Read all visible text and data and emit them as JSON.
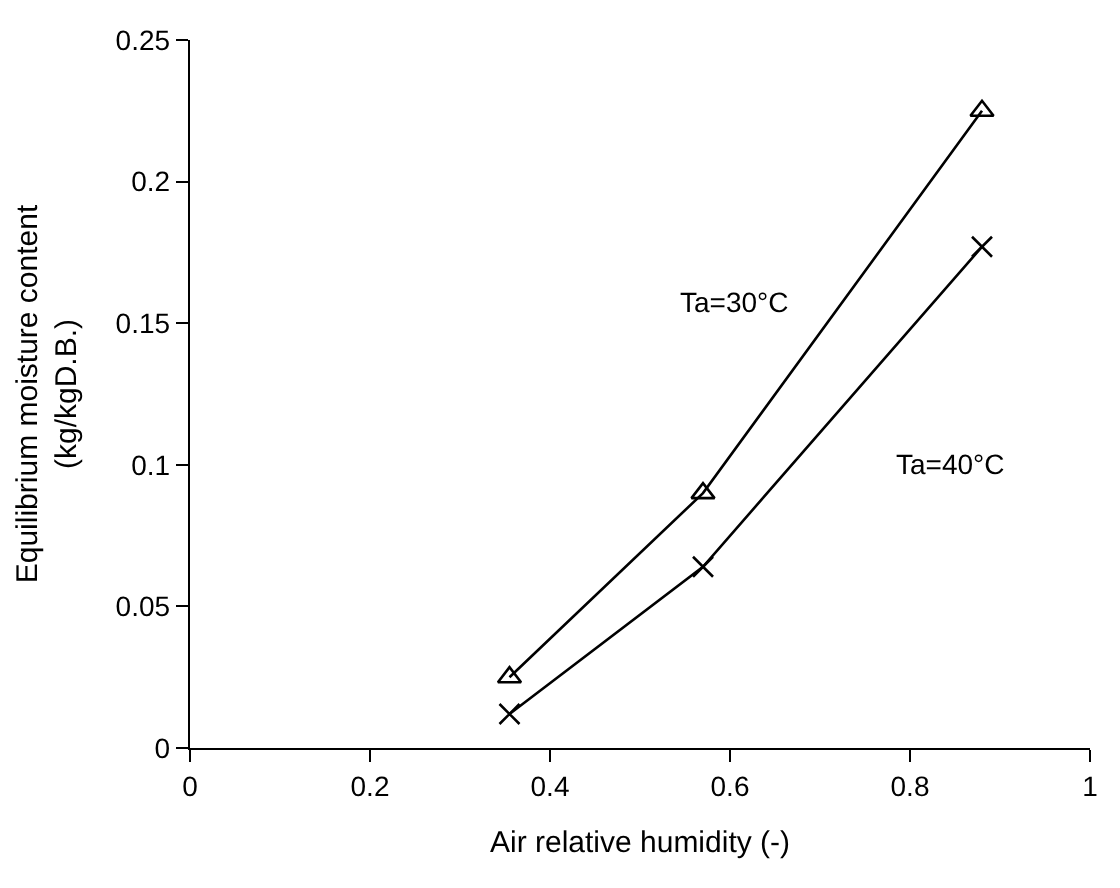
{
  "chart_data": {
    "type": "line",
    "xlabel": "Air relative humidity (-)",
    "ylabel": "Equilibrium moisture content\n(kg/kgD.B.)",
    "x": [
      0.355,
      0.57,
      0.88
    ],
    "series": [
      {
        "name": "Ta=30°C",
        "color": "#000000",
        "values": [
          0.025,
          0.09,
          0.225
        ],
        "marker": "triangle"
      },
      {
        "name": "Ta=40°C",
        "color": "#000000",
        "values": [
          0.012,
          0.064,
          0.177
        ],
        "marker": "cross"
      }
    ],
    "xlim": [
      0,
      1
    ],
    "xticks": [
      0,
      0.2,
      0.4,
      0.6,
      0.8,
      1
    ],
    "ylim": [
      0,
      0.25
    ],
    "yticks": [
      0,
      0.05,
      0.1,
      0.15,
      0.2,
      0.25
    ],
    "legend": false,
    "line_style": "solid"
  }
}
